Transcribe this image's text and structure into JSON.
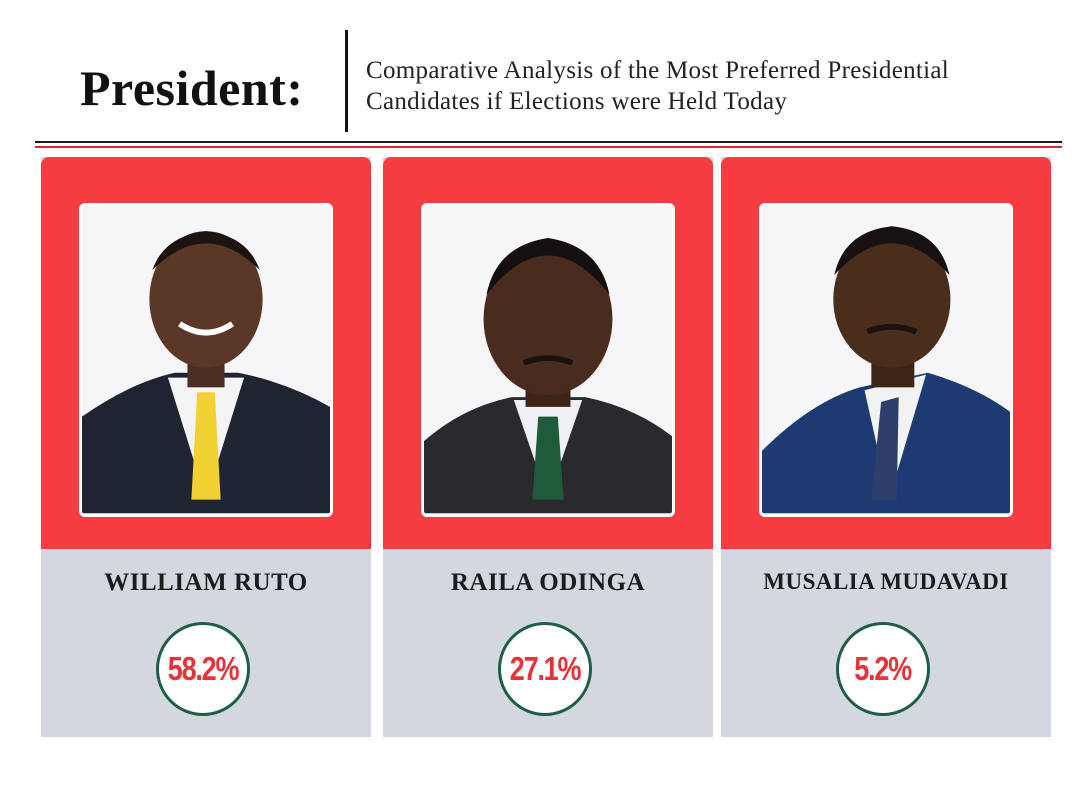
{
  "header": {
    "title": "President:",
    "subtitle_line1": "Comparative Analysis of the Most Preferred Presidential",
    "subtitle_line2": "Candidates if Elections were Held Today"
  },
  "colors": {
    "card_top": "#f43c41",
    "card_bottom": "#d3d7e0",
    "percent_text": "#e8323a",
    "circle_border": "#1d5e45",
    "rule_red": "#d62b34"
  },
  "candidates": [
    {
      "name": "WILLIAM RUTO",
      "percent": "58.2%",
      "tie_color": "#f2d233",
      "suit_color": "#1f2433",
      "shirt_color": "#f4f4f4"
    },
    {
      "name": "RAILA ODINGA",
      "percent": "27.1%",
      "tie_color": "#1f5a3a",
      "suit_color": "#2a2a2e",
      "shirt_color": "#eef0f4"
    },
    {
      "name": "MUSALIA MUDAVADI",
      "percent": "5.2%",
      "tie_color": "#2e3f6b",
      "suit_color": "#1d3a73",
      "shirt_color": "#f2f2f2"
    }
  ]
}
